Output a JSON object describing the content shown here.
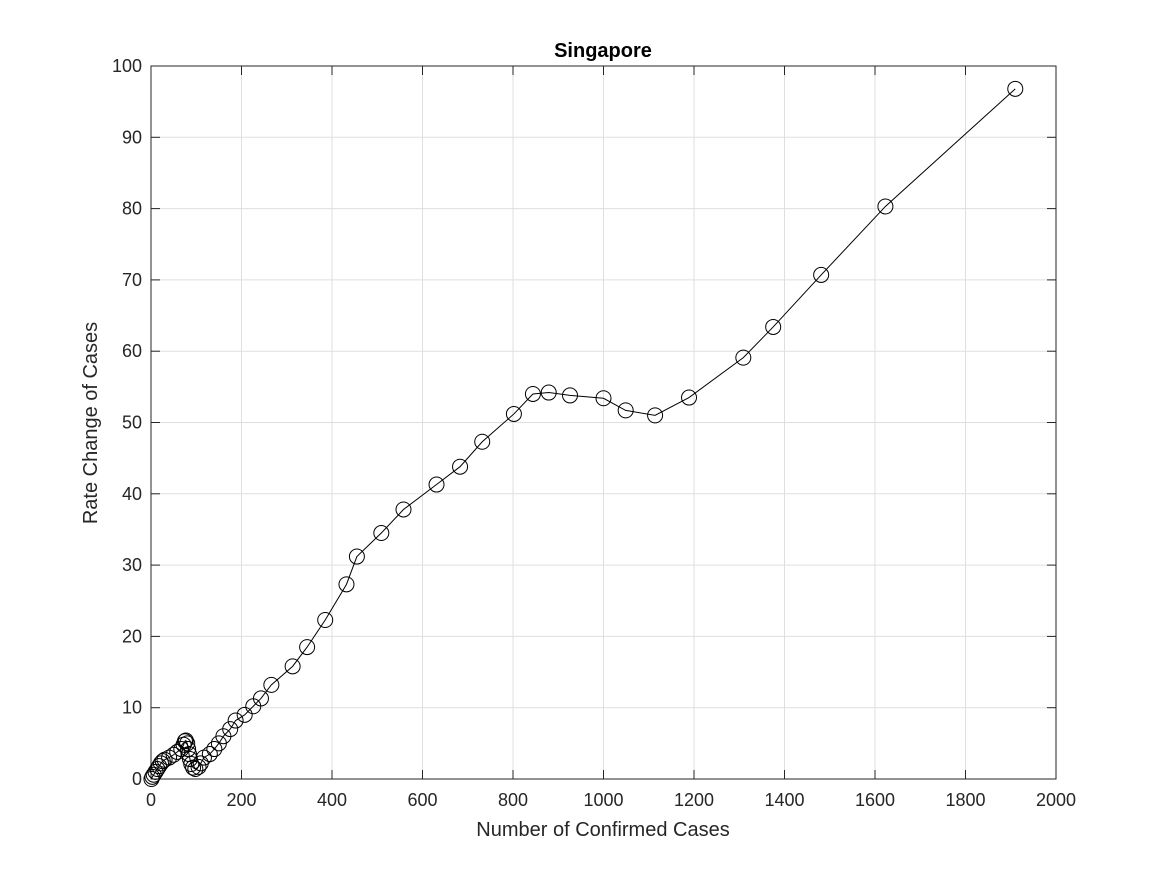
{
  "chart_data": {
    "type": "line",
    "title": "Singapore",
    "xlabel": "Number of Confirmed Cases",
    "ylabel": "Rate Change of Cases",
    "xlim": [
      0,
      2000
    ],
    "ylim": [
      0,
      100
    ],
    "xticks": [
      0,
      200,
      400,
      600,
      800,
      1000,
      1200,
      1400,
      1600,
      1800,
      2000
    ],
    "yticks": [
      0,
      10,
      20,
      30,
      40,
      50,
      60,
      70,
      80,
      90,
      100
    ],
    "xtick_labels": [
      "0",
      "200",
      "400",
      "600",
      "800",
      "1000",
      "1200",
      "1400",
      "1600",
      "1800",
      "2000"
    ],
    "ytick_labels": [
      "0",
      "10",
      "20",
      "30",
      "40",
      "50",
      "60",
      "70",
      "80",
      "90",
      "100"
    ],
    "grid": true,
    "marker": "open-circle",
    "line_color": "#000000",
    "series": [
      {
        "x": [
          1,
          3,
          6,
          10,
          14,
          18,
          22,
          26,
          30,
          40,
          50,
          58,
          67,
          72,
          75,
          77,
          80,
          82,
          84,
          86,
          89,
          93,
          98,
          105,
          110,
          117,
          130,
          140,
          150,
          160,
          175,
          187,
          207,
          226,
          243,
          266,
          313,
          345,
          385,
          432,
          455,
          509,
          558,
          631,
          683,
          732,
          802,
          844,
          879,
          926,
          1000,
          1049,
          1114,
          1189,
          1309,
          1375,
          1481,
          1623,
          1910
        ],
        "y": [
          0,
          0.3,
          0.6,
          1.0,
          1.4,
          1.8,
          2.2,
          2.5,
          2.7,
          3.0,
          3.4,
          3.8,
          4.2,
          4.8,
          5.3,
          5.4,
          5.0,
          4.2,
          3.5,
          2.8,
          2.1,
          1.6,
          1.4,
          1.7,
          2.2,
          3.0,
          3.5,
          4.2,
          5.0,
          6.0,
          7.0,
          8.2,
          9.0,
          10.2,
          11.3,
          13.2,
          15.8,
          18.5,
          22.3,
          27.3,
          31.2,
          34.5,
          37.8,
          41.3,
          43.8,
          47.3,
          51.2,
          54.0,
          54.2,
          53.8,
          53.4,
          51.7,
          51.0,
          53.5,
          59.1,
          63.4,
          70.7,
          80.3,
          96.8
        ]
      }
    ]
  }
}
